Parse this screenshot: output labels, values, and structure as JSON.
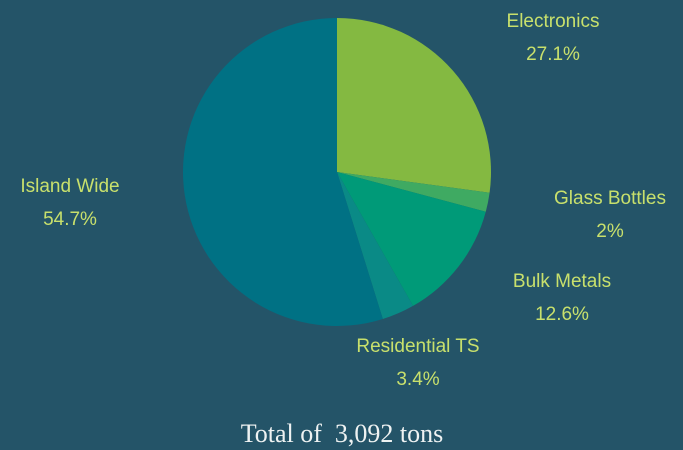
{
  "chart_data": {
    "type": "pie",
    "categories": [
      "Electronics",
      "Glass Bottles",
      "Bulk Metals",
      "Residential TS",
      "Island Wide"
    ],
    "values": [
      27.1,
      2,
      12.6,
      3.4,
      54.7
    ],
    "value_labels": [
      "27.1%",
      "2%",
      "12.6%",
      "3.4%",
      "54.7%"
    ],
    "colors": [
      "#84b941",
      "#3faa62",
      "#009a78",
      "#0a8a86",
      "#007184"
    ],
    "caption": "Total of  3,092 tons"
  }
}
